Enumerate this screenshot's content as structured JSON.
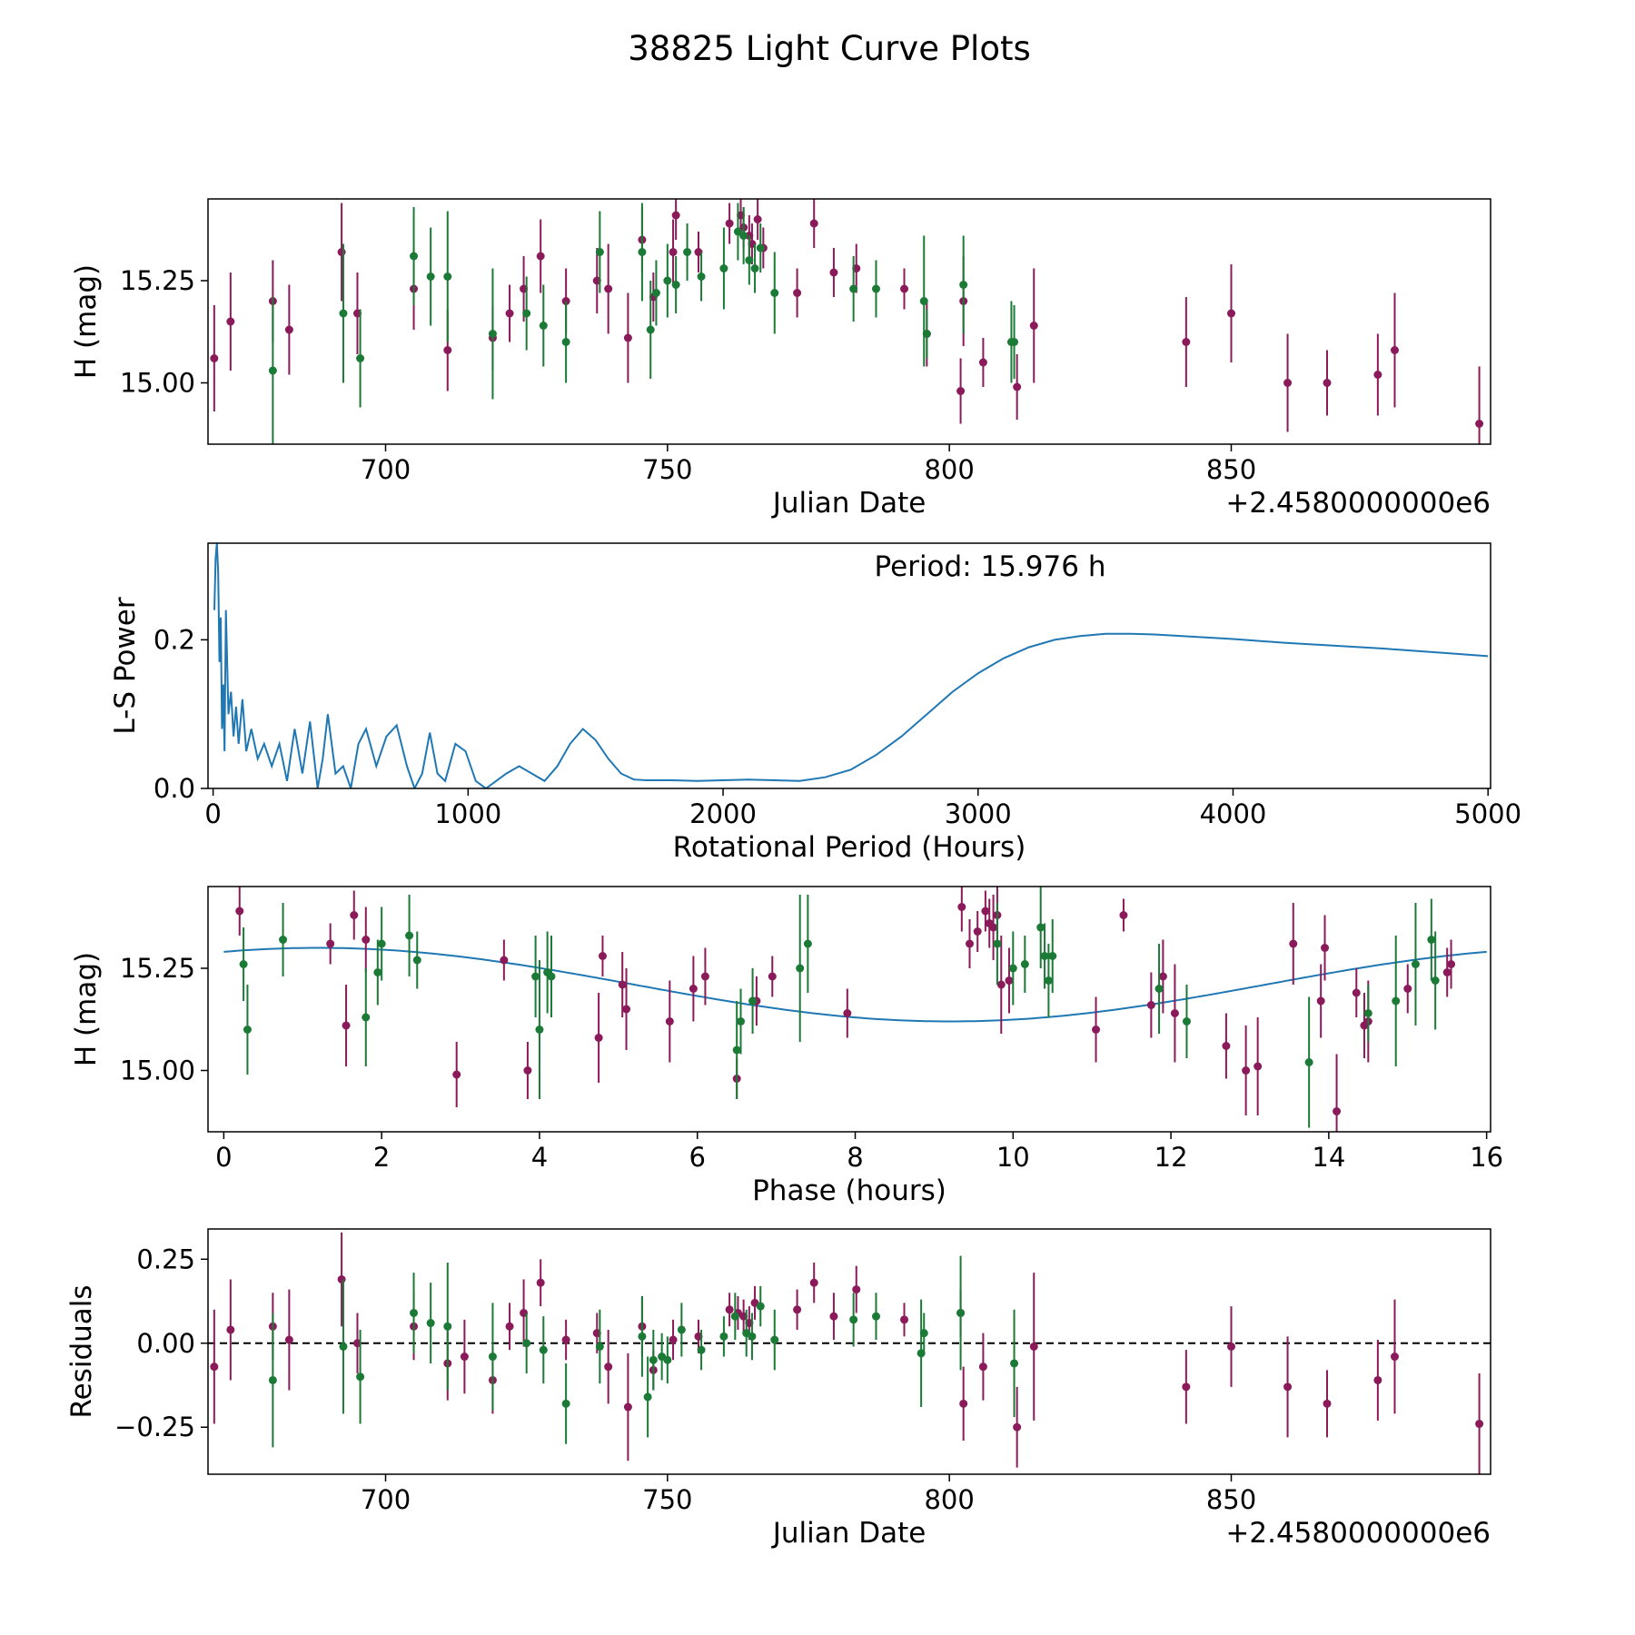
{
  "figure_title": "38825 Light Curve Plots",
  "colors": {
    "band_r": "#8b1a5a",
    "band_g": "#1a7a36",
    "periodogram": "#1f77b4",
    "model": "#1f77b4"
  },
  "chart_data": [
    {
      "type": "scatter",
      "name": "lightcurve",
      "xlabel": "Julian Date",
      "ylabel": "H (mag)",
      "offset_text": "+2.4580000000e6",
      "xlim": [
        668.5,
        896
      ],
      "ylim": [
        14.85,
        15.45
      ],
      "xticks": [
        700,
        750,
        800,
        850
      ],
      "xtick_labels": [
        "700",
        "750",
        "800",
        "850"
      ],
      "yticks": [
        15.0,
        15.25
      ],
      "ytick_labels": [
        "15.00",
        "15.25"
      ],
      "series": [
        {
          "name": "band_r",
          "color": "#8b1a5a",
          "x": [
            669.6,
            672.5,
            680.0,
            682.9,
            692.2,
            695.0,
            705.0,
            711.0,
            719.0,
            722.0,
            724.5,
            727.5,
            732.0,
            737.5,
            739.5,
            743.0,
            745.5,
            747.5,
            751.0,
            751.5,
            755.5,
            761.0,
            763.0,
            763.5,
            764.5,
            765.0,
            766.0,
            767.0,
            773.0,
            776.0,
            779.5,
            783.5,
            792.0,
            796.0,
            802.0,
            802.5,
            806.0,
            812.0,
            815.0,
            842.0,
            850.0,
            860.0,
            867.0,
            876.0,
            879.0,
            894.0
          ],
          "y": [
            15.06,
            15.15,
            15.2,
            15.13,
            15.32,
            15.17,
            15.23,
            15.08,
            15.11,
            15.17,
            15.23,
            15.31,
            15.2,
            15.25,
            15.23,
            15.11,
            15.35,
            15.21,
            15.32,
            15.41,
            15.32,
            15.39,
            15.41,
            15.38,
            15.36,
            15.34,
            15.4,
            15.33,
            15.22,
            15.39,
            15.27,
            15.28,
            15.23,
            15.12,
            14.98,
            15.2,
            15.05,
            14.99,
            15.14,
            15.1,
            15.17,
            15.0,
            15.0,
            15.02,
            15.08,
            14.9
          ],
          "err": [
            0.13,
            0.12,
            0.1,
            0.11,
            0.12,
            0.1,
            0.1,
            0.1,
            0.08,
            0.07,
            0.08,
            0.09,
            0.08,
            0.08,
            0.11,
            0.11,
            0.08,
            0.06,
            0.08,
            0.06,
            0.05,
            0.05,
            0.05,
            0.05,
            0.05,
            0.05,
            0.05,
            0.05,
            0.06,
            0.06,
            0.06,
            0.06,
            0.05,
            0.08,
            0.08,
            0.11,
            0.06,
            0.08,
            0.14,
            0.11,
            0.12,
            0.12,
            0.08,
            0.1,
            0.14,
            0.14
          ]
        },
        {
          "name": "band_g",
          "color": "#1a7a36",
          "x": [
            680.0,
            692.5,
            695.5,
            705.0,
            708.0,
            711.0,
            719.0,
            725.0,
            728.0,
            732.0,
            738.0,
            745.5,
            747.0,
            748.0,
            750.0,
            751.5,
            753.5,
            756.0,
            760.0,
            762.5,
            763.5,
            764.5,
            765.5,
            766.5,
            769.0,
            783.0,
            787.0,
            795.5,
            796.0,
            802.5,
            811.0,
            811.5
          ],
          "y": [
            15.03,
            15.17,
            15.06,
            15.31,
            15.26,
            15.26,
            15.12,
            15.17,
            15.14,
            15.1,
            15.32,
            15.32,
            15.13,
            15.22,
            15.25,
            15.24,
            15.32,
            15.26,
            15.28,
            15.37,
            15.36,
            15.3,
            15.28,
            15.33,
            15.22,
            15.23,
            15.23,
            15.2,
            15.12,
            15.24,
            15.1,
            15.1
          ],
          "err": [
            0.18,
            0.17,
            0.12,
            0.12,
            0.12,
            0.16,
            0.16,
            0.09,
            0.1,
            0.1,
            0.1,
            0.12,
            0.12,
            0.08,
            0.09,
            0.07,
            0.07,
            0.06,
            0.1,
            0.07,
            0.07,
            0.06,
            0.06,
            0.06,
            0.1,
            0.08,
            0.07,
            0.16,
            0.06,
            0.12,
            0.1,
            0.09
          ]
        }
      ]
    },
    {
      "type": "line",
      "name": "periodogram",
      "xlabel": "Rotational Period (Hours)",
      "ylabel": "L-S Power",
      "annotation": "Period: 15.976 h",
      "xlim": [
        -20,
        5010
      ],
      "ylim": [
        0,
        0.33
      ],
      "xticks": [
        0,
        1000,
        2000,
        3000,
        4000,
        5000
      ],
      "xtick_labels": [
        "0",
        "1000",
        "2000",
        "3000",
        "4000",
        "5000"
      ],
      "yticks": [
        0.0,
        0.2
      ],
      "ytick_labels": [
        "0.0",
        "0.2"
      ],
      "x": [
        5,
        10,
        15,
        20,
        25,
        30,
        35,
        40,
        45,
        50,
        60,
        70,
        80,
        90,
        100,
        115,
        130,
        150,
        175,
        200,
        230,
        260,
        290,
        320,
        350,
        380,
        410,
        430,
        450,
        480,
        510,
        540,
        570,
        600,
        640,
        680,
        720,
        760,
        790,
        820,
        850,
        880,
        910,
        950,
        990,
        1030,
        1070,
        1110,
        1150,
        1200,
        1250,
        1300,
        1350,
        1400,
        1450,
        1500,
        1550,
        1600,
        1650,
        1700,
        1800,
        1900,
        2000,
        2100,
        2200,
        2300,
        2400,
        2500,
        2600,
        2700,
        2800,
        2900,
        3000,
        3100,
        3200,
        3300,
        3400,
        3500,
        3600,
        3700,
        3800,
        4000,
        4200,
        4400,
        4600,
        4800,
        5000
      ],
      "y": [
        0.24,
        0.31,
        0.33,
        0.29,
        0.17,
        0.23,
        0.08,
        0.14,
        0.05,
        0.24,
        0.1,
        0.13,
        0.07,
        0.11,
        0.06,
        0.12,
        0.05,
        0.08,
        0.04,
        0.06,
        0.03,
        0.06,
        0.01,
        0.08,
        0.02,
        0.09,
        0.0,
        0.04,
        0.1,
        0.02,
        0.03,
        0.0,
        0.06,
        0.08,
        0.03,
        0.07,
        0.085,
        0.03,
        0.0,
        0.02,
        0.075,
        0.02,
        0.01,
        0.06,
        0.05,
        0.01,
        0.0,
        0.01,
        0.02,
        0.03,
        0.02,
        0.01,
        0.03,
        0.06,
        0.08,
        0.065,
        0.04,
        0.02,
        0.012,
        0.011,
        0.011,
        0.01,
        0.011,
        0.012,
        0.011,
        0.01,
        0.015,
        0.025,
        0.045,
        0.07,
        0.1,
        0.13,
        0.155,
        0.175,
        0.19,
        0.2,
        0.205,
        0.208,
        0.208,
        0.207,
        0.205,
        0.201,
        0.196,
        0.192,
        0.188,
        0.183,
        0.178
      ]
    },
    {
      "type": "scatter",
      "name": "phased",
      "xlabel": "Phase (hours)",
      "ylabel": "H (mag)",
      "xlim": [
        -0.2,
        16.05
      ],
      "ylim": [
        14.85,
        15.45
      ],
      "xticks": [
        0,
        2,
        4,
        6,
        8,
        10,
        12,
        14,
        16
      ],
      "xtick_labels": [
        "0",
        "2",
        "4",
        "6",
        "8",
        "10",
        "12",
        "14",
        "16"
      ],
      "yticks": [
        15.0,
        15.25
      ],
      "ytick_labels": [
        "15.00",
        "15.25"
      ],
      "model": {
        "mean": 15.21,
        "amplitude": 0.09,
        "peak_phase": 1.2,
        "period": 16.0
      },
      "series": [
        {
          "name": "band_r",
          "color": "#8b1a5a",
          "x": [
            0.2,
            1.35,
            1.55,
            1.65,
            1.8,
            2.95,
            3.55,
            3.85,
            4.75,
            4.8,
            5.05,
            5.1,
            5.65,
            5.95,
            6.1,
            6.5,
            6.75,
            6.95,
            7.9,
            9.35,
            9.45,
            9.55,
            9.65,
            9.7,
            9.75,
            9.8,
            9.85,
            9.95,
            11.05,
            11.4,
            11.75,
            11.9,
            12.05,
            12.7,
            12.95,
            13.1,
            13.55,
            13.9,
            13.95,
            14.1,
            14.35,
            14.45,
            14.5,
            15.0,
            15.5,
            15.55
          ],
          "y": [
            15.39,
            15.31,
            15.11,
            15.38,
            15.32,
            14.99,
            15.27,
            15.0,
            15.08,
            15.28,
            15.21,
            15.15,
            15.12,
            15.2,
            15.23,
            14.98,
            15.17,
            15.23,
            15.14,
            15.4,
            15.31,
            15.34,
            15.39,
            15.36,
            15.35,
            15.38,
            15.21,
            15.22,
            15.1,
            15.38,
            15.16,
            15.23,
            15.14,
            15.06,
            15.0,
            15.01,
            15.31,
            15.17,
            15.3,
            14.9,
            15.19,
            15.11,
            15.12,
            15.2,
            15.24,
            15.26
          ],
          "err": [
            0.06,
            0.05,
            0.1,
            0.06,
            0.08,
            0.08,
            0.05,
            0.07,
            0.11,
            0.05,
            0.08,
            0.1,
            0.1,
            0.08,
            0.07,
            0.05,
            0.06,
            0.05,
            0.06,
            0.06,
            0.06,
            0.05,
            0.05,
            0.06,
            0.08,
            0.08,
            0.12,
            0.08,
            0.08,
            0.04,
            0.08,
            0.09,
            0.12,
            0.08,
            0.11,
            0.12,
            0.1,
            0.09,
            0.08,
            0.14,
            0.06,
            0.08,
            0.1,
            0.06,
            0.06,
            0.06
          ]
        },
        {
          "name": "band_g",
          "color": "#1a7a36",
          "x": [
            0.25,
            0.3,
            0.75,
            1.8,
            1.95,
            2.0,
            2.35,
            2.45,
            3.95,
            4.0,
            4.1,
            4.15,
            6.5,
            6.55,
            6.7,
            7.3,
            7.4,
            9.8,
            10.0,
            10.15,
            10.35,
            10.4,
            10.45,
            10.5,
            11.85,
            12.2,
            13.75,
            14.5,
            14.85,
            15.1,
            15.3,
            15.35
          ],
          "y": [
            15.26,
            15.1,
            15.32,
            15.13,
            15.24,
            15.31,
            15.33,
            15.27,
            15.23,
            15.1,
            15.24,
            15.23,
            15.05,
            15.12,
            15.17,
            15.25,
            15.31,
            15.31,
            15.25,
            15.26,
            15.35,
            15.28,
            15.22,
            15.28,
            15.2,
            15.12,
            15.02,
            15.14,
            15.17,
            15.26,
            15.32,
            15.22
          ],
          "err": [
            0.09,
            0.11,
            0.09,
            0.12,
            0.08,
            0.09,
            0.1,
            0.07,
            0.1,
            0.17,
            0.1,
            0.1,
            0.12,
            0.08,
            0.08,
            0.18,
            0.12,
            0.1,
            0.09,
            0.07,
            0.1,
            0.08,
            0.09,
            0.09,
            0.11,
            0.09,
            0.16,
            0.07,
            0.16,
            0.15,
            0.1,
            0.12
          ]
        }
      ]
    },
    {
      "type": "scatter",
      "name": "residuals",
      "xlabel": "Julian Date",
      "ylabel": "Residuals",
      "offset_text": "+2.4580000000e6",
      "xlim": [
        668.5,
        896
      ],
      "ylim": [
        -0.39,
        0.34
      ],
      "xticks": [
        700,
        750,
        800,
        850
      ],
      "xtick_labels": [
        "700",
        "750",
        "800",
        "850"
      ],
      "yticks": [
        -0.25,
        0.0,
        0.25
      ],
      "ytick_labels": [
        "−0.25",
        "0.00",
        "0.25"
      ],
      "reference_line": 0.0,
      "series": [
        {
          "name": "band_r",
          "color": "#8b1a5a",
          "x": [
            669.6,
            672.5,
            680.0,
            682.9,
            692.2,
            695.0,
            705.0,
            711.0,
            714.0,
            719.0,
            722.0,
            724.5,
            727.5,
            732.0,
            737.5,
            739.5,
            743.0,
            745.5,
            747.5,
            751.0,
            755.5,
            761.0,
            762.5,
            763.5,
            764.5,
            765.5,
            773.0,
            776.0,
            779.5,
            783.5,
            792.0,
            802.0,
            802.5,
            806.0,
            812.0,
            815.0,
            842.0,
            850.0,
            860.0,
            867.0,
            876.0,
            879.0,
            894.0
          ],
          "y": [
            -0.07,
            0.04,
            0.05,
            0.01,
            0.19,
            0.0,
            0.05,
            -0.06,
            -0.04,
            -0.11,
            0.05,
            0.09,
            0.18,
            0.01,
            0.03,
            -0.07,
            -0.19,
            0.05,
            -0.08,
            0.01,
            0.02,
            0.1,
            0.09,
            0.08,
            0.06,
            0.12,
            0.1,
            0.18,
            0.08,
            0.16,
            0.07,
            0.09,
            -0.18,
            -0.07,
            -0.25,
            -0.01,
            -0.13,
            -0.01,
            -0.13,
            -0.18,
            -0.11,
            -0.04,
            -0.24
          ],
          "err": [
            0.17,
            0.15,
            0.1,
            0.15,
            0.14,
            0.09,
            0.1,
            0.11,
            0.11,
            0.1,
            0.07,
            0.1,
            0.07,
            0.06,
            0.06,
            0.11,
            0.16,
            0.09,
            0.06,
            0.06,
            0.05,
            0.05,
            0.05,
            0.05,
            0.05,
            0.05,
            0.06,
            0.06,
            0.07,
            0.07,
            0.05,
            0.07,
            0.11,
            0.1,
            0.12,
            0.22,
            0.11,
            0.12,
            0.15,
            0.1,
            0.12,
            0.17,
            0.15
          ]
        },
        {
          "name": "band_g",
          "color": "#1a7a36",
          "x": [
            680.0,
            692.5,
            695.5,
            705.0,
            708.0,
            711.0,
            719.0,
            725.0,
            728.0,
            732.0,
            738.0,
            745.5,
            746.5,
            747.5,
            749.0,
            750.0,
            752.5,
            756.0,
            760.0,
            762.0,
            764.0,
            765.0,
            766.5,
            769.0,
            787.0,
            783.0,
            795.0,
            795.5,
            802.0,
            811.5
          ],
          "y": [
            -0.11,
            -0.01,
            -0.1,
            0.09,
            0.06,
            0.05,
            -0.04,
            0.0,
            -0.02,
            -0.18,
            -0.01,
            0.02,
            -0.16,
            -0.05,
            -0.04,
            -0.05,
            0.04,
            -0.02,
            0.02,
            0.08,
            0.03,
            0.02,
            0.11,
            0.01,
            0.08,
            0.07,
            -0.03,
            0.03,
            0.09,
            -0.06
          ],
          "err": [
            0.2,
            0.2,
            0.14,
            0.12,
            0.12,
            0.19,
            0.16,
            0.09,
            0.1,
            0.12,
            0.11,
            0.12,
            0.12,
            0.09,
            0.07,
            0.07,
            0.08,
            0.06,
            0.06,
            0.07,
            0.07,
            0.07,
            0.06,
            0.09,
            0.07,
            0.08,
            0.16,
            0.06,
            0.17,
            0.16
          ]
        }
      ]
    }
  ]
}
